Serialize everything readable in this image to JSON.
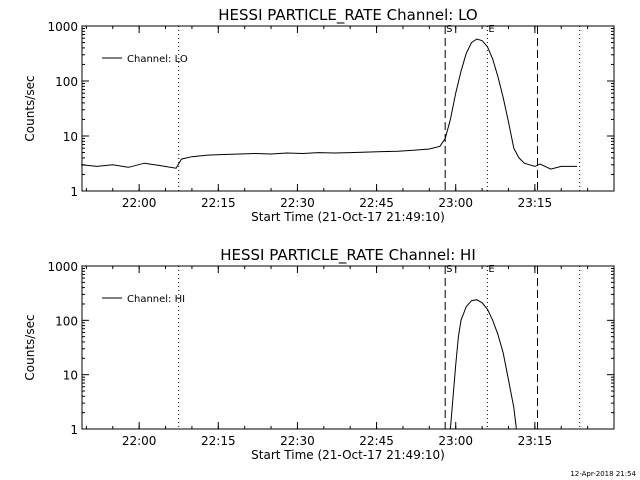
{
  "chart_data": [
    {
      "type": "line",
      "title": "HESSI PARTICLE_RATE Channel: LO",
      "xlabel": "Start Time (21-Oct-17 21:49:10)",
      "ylabel": "Counts/sec",
      "y_scale": "log",
      "ylim": [
        1,
        1000
      ],
      "xlim": [
        "21:49:10",
        "23:30:00"
      ],
      "x_ticks": [
        "22:00",
        "22:15",
        "22:30",
        "22:45",
        "23:00",
        "23:15"
      ],
      "y_ticks": [
        "1",
        "10",
        "100",
        "1000"
      ],
      "legend": "top-left",
      "series": [
        {
          "name": "Channel: LO",
          "x": [
            "21:49",
            "21:52",
            "21:55",
            "21:58",
            "22:01",
            "22:04",
            "22:07",
            "22:08",
            "22:10",
            "22:13",
            "22:16",
            "22:19",
            "22:22",
            "22:25",
            "22:28",
            "22:31",
            "22:34",
            "22:37",
            "22:40",
            "22:43",
            "22:46",
            "22:49",
            "22:52",
            "22:55",
            "22:57",
            "22:58",
            "22:59",
            "23:00",
            "23:01",
            "23:02",
            "23:03",
            "23:04",
            "23:05",
            "23:06",
            "23:07",
            "23:08",
            "23:09",
            "23:10",
            "23:11",
            "23:12",
            "23:13",
            "23:14",
            "23:15",
            "23:16",
            "23:18",
            "23:20",
            "23:21",
            "23:23"
          ],
          "values": [
            3,
            2.8,
            3,
            2.7,
            3.2,
            2.9,
            2.6,
            3.8,
            4.2,
            4.5,
            4.6,
            4.7,
            4.8,
            4.7,
            4.9,
            4.8,
            5,
            4.9,
            5,
            5.1,
            5.2,
            5.3,
            5.5,
            5.8,
            6.5,
            9,
            20,
            60,
            150,
            320,
            500,
            580,
            540,
            420,
            250,
            120,
            50,
            18,
            6,
            4,
            3.2,
            3,
            2.8,
            3.1,
            2.5,
            2.8,
            2.8,
            2.8
          ]
        }
      ],
      "vlines": [
        {
          "time": "22:07:30",
          "style": "dotted"
        },
        {
          "time": "22:58:00",
          "style": "dashed",
          "label": "S"
        },
        {
          "time": "23:06:00",
          "style": "dotted",
          "label": "E"
        },
        {
          "time": "23:15:30",
          "style": "dashed"
        },
        {
          "time": "23:23:30",
          "style": "dotted"
        }
      ]
    },
    {
      "type": "line",
      "title": "HESSI PARTICLE_RATE Channel: HI",
      "xlabel": "Start Time (21-Oct-17 21:49:10)",
      "ylabel": "Counts/sec",
      "y_scale": "log",
      "ylim": [
        1,
        1000
      ],
      "xlim": [
        "21:49:10",
        "23:30:00"
      ],
      "x_ticks": [
        "22:00",
        "22:15",
        "22:30",
        "22:45",
        "23:00",
        "23:15"
      ],
      "y_ticks": [
        "1",
        "10",
        "100",
        "1000"
      ],
      "legend": "top-left",
      "series": [
        {
          "name": "Channel: HI",
          "x": [
            "22:59",
            "22:59:30",
            "23:00",
            "23:00:30",
            "23:01",
            "23:02",
            "23:03",
            "23:04",
            "23:05",
            "23:06",
            "23:07",
            "23:08",
            "23:09",
            "23:10",
            "23:11",
            "23:11:30"
          ],
          "values": [
            1,
            4,
            15,
            50,
            100,
            180,
            230,
            240,
            210,
            160,
            100,
            55,
            25,
            8,
            2.5,
            1
          ]
        }
      ],
      "vlines": [
        {
          "time": "22:07:30",
          "style": "dotted"
        },
        {
          "time": "22:58:00",
          "style": "dashed",
          "label": "S"
        },
        {
          "time": "23:06:00",
          "style": "dotted",
          "label": "E"
        },
        {
          "time": "23:15:30",
          "style": "dashed"
        },
        {
          "time": "23:23:30",
          "style": "dotted"
        }
      ]
    }
  ],
  "footer": {
    "timestamp": "12-Apr-2018 21:54"
  }
}
